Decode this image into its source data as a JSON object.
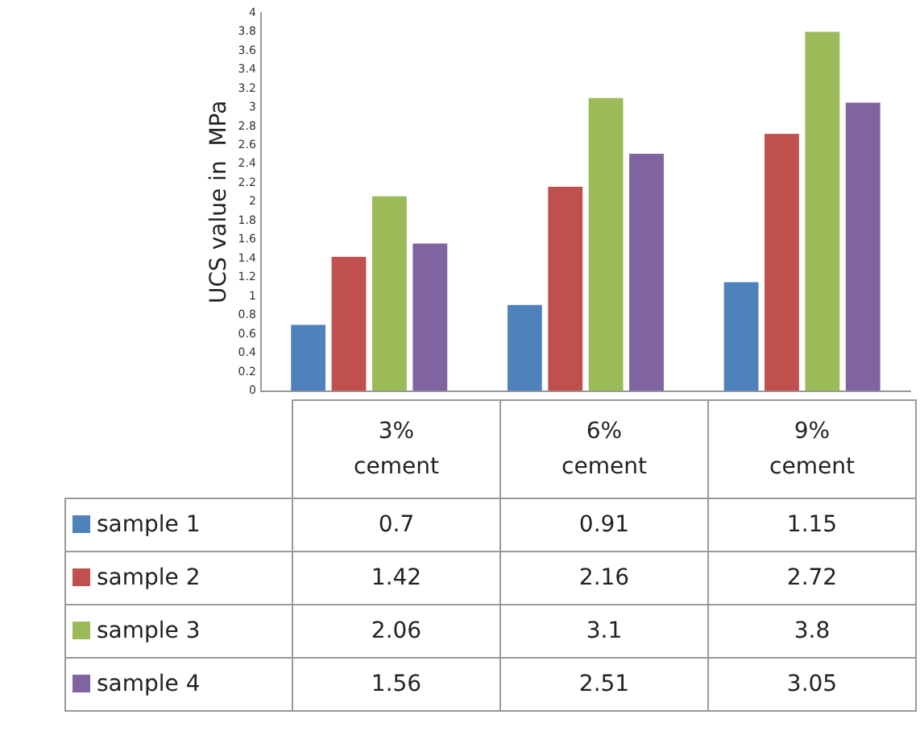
{
  "chart_data": {
    "type": "bar",
    "ylabel": "UCS value in  MPa",
    "categories": [
      "3%\ncement",
      "6%\ncement",
      "9%\ncement"
    ],
    "series": [
      {
        "name": "sample 1",
        "color": "#4f81bd",
        "values": [
          0.7,
          0.91,
          1.15
        ]
      },
      {
        "name": "sample 2",
        "color": "#c0504d",
        "values": [
          1.42,
          2.16,
          2.72
        ]
      },
      {
        "name": "sample 3",
        "color": "#9bbb59",
        "values": [
          2.06,
          3.1,
          3.8
        ]
      },
      {
        "name": "sample 4",
        "color": "#8064a2",
        "values": [
          1.56,
          2.51,
          3.05
        ]
      }
    ],
    "ylim": [
      0,
      4
    ],
    "yticks": [
      0,
      0.2,
      0.4,
      0.6,
      0.8,
      1,
      1.2,
      1.4,
      1.6,
      1.8,
      2,
      2.2,
      2.4,
      2.6,
      2.8,
      3,
      3.2,
      3.4,
      3.6,
      3.8,
      4
    ],
    "grid": false,
    "legend": "bottom",
    "data_labels": true
  }
}
